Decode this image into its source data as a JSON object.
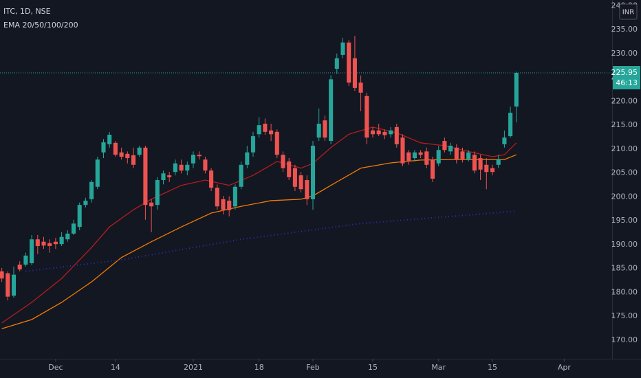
{
  "chart_data": {
    "type": "candlestick",
    "title": "ITC, 1D, NSE",
    "subtitle": "EMA 20/50/100/200",
    "currency": "INR",
    "up_color": "#26a69a",
    "down_color": "#ef5350",
    "open": [
      184.4,
      184.0,
      179.3,
      185.8,
      185.8,
      186.1,
      191.1,
      190.6,
      190.3,
      190.6,
      190.1,
      191.1,
      192.3,
      193.7,
      198.3,
      199.5,
      202.1,
      209.3,
      211.0,
      211.3,
      209.3,
      209.0,
      208.7,
      208.8,
      210.3,
      198.8,
      198.3,
      203.5,
      204.5,
      205.2,
      206.7,
      205.5,
      207.0,
      208.8,
      207.8,
      205.5,
      201.9,
      199.5,
      199.2,
      198.0,
      202.1,
      206.7,
      209.3,
      213.1,
      215.3,
      213.9,
      213.6,
      208.8,
      207.4,
      206.0,
      204.5,
      203.5,
      199.5,
      212.4,
      216.0,
      211.7,
      226.8,
      229.7,
      232.3,
      229.0,
      223.9,
      221.1,
      213.9,
      213.9,
      213.6,
      213.1,
      214.6,
      212.4,
      209.3,
      208.1,
      209.3,
      209.5,
      207.8,
      207.0,
      211.7,
      209.5,
      210.3,
      209.5,
      207.8,
      208.8,
      208.1,
      206.7,
      206.0,
      206.7,
      211.0,
      212.7,
      218.9
    ],
    "high": [
      185.1,
      184.4,
      185.4,
      186.5,
      188.3,
      192.0,
      192.0,
      191.6,
      191.1,
      191.4,
      192.6,
      193.0,
      195.2,
      198.8,
      199.8,
      203.5,
      208.4,
      212.1,
      213.6,
      211.7,
      210.3,
      209.5,
      210.3,
      210.7,
      210.7,
      199.5,
      204.1,
      205.5,
      205.2,
      207.8,
      207.8,
      207.4,
      209.5,
      209.5,
      208.4,
      206.0,
      202.6,
      200.2,
      200.1,
      202.6,
      207.4,
      210.7,
      213.6,
      216.7,
      216.4,
      215.3,
      214.1,
      209.5,
      208.1,
      206.7,
      205.2,
      204.5,
      211.7,
      218.5,
      217.0,
      225.4,
      230.0,
      233.3,
      232.8,
      233.7,
      225.4,
      221.8,
      214.6,
      215.3,
      214.1,
      214.6,
      215.3,
      213.1,
      209.8,
      209.8,
      209.8,
      210.3,
      208.4,
      210.7,
      212.4,
      211.3,
      211.0,
      210.3,
      209.8,
      209.5,
      208.8,
      208.1,
      206.7,
      208.8,
      213.9,
      218.9,
      226.2
    ],
    "low": [
      182.2,
      178.3,
      178.9,
      184.4,
      185.4,
      185.7,
      188.0,
      189.1,
      188.3,
      189.1,
      189.7,
      190.6,
      192.0,
      193.0,
      197.8,
      198.8,
      201.6,
      208.1,
      210.3,
      208.4,
      207.8,
      207.0,
      206.0,
      208.4,
      195.2,
      192.6,
      197.3,
      202.6,
      203.1,
      204.5,
      204.9,
      204.5,
      206.0,
      207.8,
      204.9,
      201.2,
      197.3,
      196.3,
      195.9,
      197.3,
      201.6,
      206.0,
      208.4,
      212.4,
      213.0,
      211.7,
      208.1,
      205.2,
      203.5,
      201.2,
      200.9,
      198.3,
      197.3,
      211.7,
      211.7,
      211.0,
      225.7,
      229.0,
      223.2,
      222.2,
      217.9,
      211.0,
      212.4,
      212.7,
      212.1,
      212.4,
      210.3,
      206.4,
      206.7,
      207.4,
      208.1,
      206.0,
      203.1,
      206.4,
      209.3,
      208.8,
      207.0,
      207.2,
      207.4,
      204.9,
      203.5,
      201.6,
      204.5,
      206.0,
      210.3,
      212.4,
      215.6
    ],
    "close": [
      182.9,
      179.1,
      183.7,
      184.8,
      187.7,
      191.1,
      189.7,
      189.8,
      189.7,
      190.1,
      191.6,
      192.3,
      194.4,
      198.3,
      199.2,
      203.1,
      207.8,
      211.4,
      213.0,
      208.8,
      208.4,
      208.1,
      206.7,
      210.3,
      198.3,
      198.0,
      203.5,
      204.9,
      204.1,
      207.0,
      205.5,
      206.7,
      208.8,
      208.5,
      205.5,
      201.9,
      198.0,
      197.3,
      197.2,
      202.1,
      206.7,
      209.3,
      212.7,
      215.0,
      213.6,
      213.1,
      208.8,
      206.0,
      204.1,
      202.1,
      201.6,
      199.5,
      210.7,
      215.3,
      212.4,
      224.6,
      229.0,
      232.3,
      223.9,
      222.8,
      221.8,
      212.4,
      213.1,
      213.1,
      212.9,
      213.9,
      211.0,
      207.0,
      207.4,
      209.3,
      208.8,
      206.7,
      203.8,
      209.8,
      209.8,
      210.7,
      207.8,
      207.8,
      209.3,
      205.5,
      205.7,
      205.2,
      205.2,
      207.8,
      212.4,
      217.6,
      225.95
    ],
    "series": [
      {
        "color": "#b71c1c",
        "style": "solid",
        "x": [
          0,
          5,
          10,
          15,
          18,
          22,
          25,
          30,
          34,
          38,
          42,
          46,
          50,
          52,
          55,
          58,
          62,
          66,
          70,
          74,
          78,
          82,
          84,
          86
        ],
        "values": [
          173.6,
          177.9,
          182.9,
          189.4,
          193.7,
          197.3,
          199.5,
          202.4,
          203.5,
          202.4,
          204.5,
          207.4,
          206.0,
          207.0,
          210.3,
          213.1,
          214.6,
          213.4,
          211.3,
          210.7,
          209.5,
          208.4,
          208.8,
          211.3
        ]
      },
      {
        "color": "#f57c00",
        "style": "solid",
        "x": [
          0,
          5,
          10,
          15,
          20,
          25,
          30,
          35,
          40,
          45,
          50,
          52,
          55,
          60,
          65,
          70,
          75,
          80,
          84,
          86
        ],
        "values": [
          172.4,
          174.3,
          177.9,
          182.2,
          187.3,
          190.6,
          193.7,
          196.6,
          198.0,
          199.2,
          199.5,
          200.2,
          202.4,
          206.0,
          207.1,
          207.7,
          207.8,
          207.8,
          207.8,
          208.8
        ]
      },
      {
        "color": "#3030c0",
        "style": "dotted",
        "x": [
          4,
          20,
          40,
          60,
          86
        ],
        "values": [
          184.4,
          186.8,
          191.1,
          194.4,
          197.0
        ]
      }
    ],
    "last_price": 225.95,
    "countdown": "46:13",
    "xlim": [
      -0.3,
      102
    ],
    "xticks": [
      {
        "value": 9,
        "label": "Dec"
      },
      {
        "value": 19,
        "label": "14"
      },
      {
        "value": 32,
        "label": "2021"
      },
      {
        "value": 43,
        "label": "18"
      },
      {
        "value": 52,
        "label": "Feb"
      },
      {
        "value": 62,
        "label": "15"
      },
      {
        "value": 73,
        "label": "Mar"
      },
      {
        "value": 82,
        "label": "15"
      },
      {
        "value": 94,
        "label": "Apr"
      }
    ],
    "ylim": [
      166.1,
      241.2
    ],
    "yticks": [
      {
        "value": 170,
        "label": "170.00"
      },
      {
        "value": 175,
        "label": "175.00"
      },
      {
        "value": 180,
        "label": "180.00"
      },
      {
        "value": 185,
        "label": "185.00"
      },
      {
        "value": 190,
        "label": "190.00"
      },
      {
        "value": 195,
        "label": "195.00"
      },
      {
        "value": 200,
        "label": "200.00"
      },
      {
        "value": 205,
        "label": "205.00"
      },
      {
        "value": 210,
        "label": "210.00"
      },
      {
        "value": 215,
        "label": "215.00"
      },
      {
        "value": 220,
        "label": "220.00"
      },
      {
        "value": 225,
        "label": "225.00"
      },
      {
        "value": 230,
        "label": "230.00"
      },
      {
        "value": 235,
        "label": "235.00"
      },
      {
        "value": 240,
        "label": "240.00"
      }
    ]
  }
}
